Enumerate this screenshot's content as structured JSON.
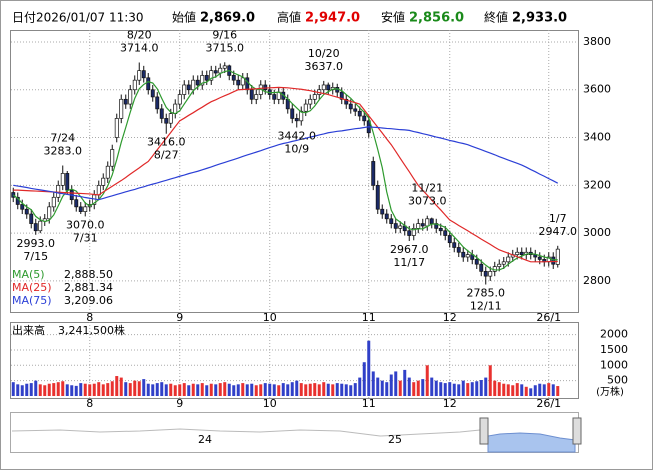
{
  "header": {
    "date_label": "日付",
    "date": "2026/01/07 11:30",
    "fields": [
      {
        "label": "始値",
        "value": "2,869.0"
      },
      {
        "label": "高値",
        "value": "2,947.0"
      },
      {
        "label": "安値",
        "value": "2,856.0"
      },
      {
        "label": "終値",
        "value": "2,933.0"
      }
    ]
  },
  "chart_data": {
    "type": "candlestick",
    "categories": [
      null,
      null,
      null,
      null,
      null,
      null,
      null,
      null,
      null,
      null,
      null,
      null,
      null,
      null,
      null,
      null,
      null,
      "8",
      null,
      null,
      null,
      null,
      null,
      null,
      null,
      null,
      null,
      null,
      null,
      null,
      null,
      null,
      null,
      null,
      null,
      null,
      null,
      "9",
      null,
      null,
      null,
      null,
      null,
      null,
      null,
      null,
      null,
      null,
      null,
      null,
      null,
      null,
      null,
      null,
      null,
      null,
      null,
      "10",
      null,
      null,
      null,
      null,
      null,
      null,
      null,
      null,
      null,
      null,
      null,
      null,
      null,
      null,
      null,
      null,
      null,
      null,
      null,
      null,
      null,
      "11",
      null,
      null,
      null,
      null,
      null,
      null,
      null,
      null,
      null,
      null,
      null,
      null,
      null,
      null,
      null,
      null,
      null,
      "12",
      null,
      null,
      null,
      null,
      null,
      null,
      null,
      null,
      null,
      null,
      null,
      null,
      null,
      null,
      null,
      null,
      null,
      null,
      null,
      null,
      null,
      "26/1",
      null,
      null
    ],
    "open": [
      3170,
      3150,
      3120,
      3100,
      3080,
      3040,
      3010,
      3050,
      3060,
      3110,
      3150,
      3200,
      3250,
      3180,
      3140,
      3110,
      3090,
      3110,
      3120,
      3160,
      3200,
      3230,
      3280,
      3400,
      3480,
      3560,
      3540,
      3600,
      3640,
      3680,
      3650,
      3600,
      3570,
      3520,
      3480,
      3460,
      3500,
      3540,
      3580,
      3620,
      3600,
      3640,
      3620,
      3660,
      3640,
      3680,
      3670,
      3690,
      3700,
      3660,
      3640,
      3620,
      3650,
      3600,
      3560,
      3580,
      3620,
      3600,
      3580,
      3560,
      3590,
      3560,
      3520,
      3480,
      3470,
      3510,
      3540,
      3560,
      3580,
      3600,
      3620,
      3600,
      3610,
      3590,
      3560,
      3540,
      3520,
      3510,
      3490,
      3470,
      3300,
      3200,
      3100,
      3080,
      3060,
      3040,
      3020,
      3030,
      3010,
      2990,
      3020,
      3040,
      3030,
      3060,
      3040,
      3020,
      3010,
      2990,
      2960,
      2940,
      2920,
      2900,
      2910,
      2890,
      2870,
      2840,
      2820,
      2840,
      2860,
      2870,
      2880,
      2900,
      2910,
      2920,
      2910,
      2920,
      2910,
      2900,
      2890,
      2880,
      2900,
      2869
    ],
    "high": [
      3190,
      3170,
      3140,
      3120,
      3100,
      3060,
      3070,
      3080,
      3130,
      3170,
      3220,
      3283,
      3260,
      3200,
      3160,
      3130,
      3130,
      3140,
      3180,
      3220,
      3250,
      3300,
      3370,
      3500,
      3580,
      3580,
      3620,
      3660,
      3714,
      3700,
      3670,
      3620,
      3590,
      3540,
      3500,
      3520,
      3560,
      3600,
      3640,
      3640,
      3660,
      3660,
      3680,
      3680,
      3700,
      3700,
      3710,
      3715,
      3705,
      3680,
      3660,
      3670,
      3670,
      3620,
      3600,
      3640,
      3640,
      3620,
      3600,
      3610,
      3610,
      3580,
      3540,
      3500,
      3530,
      3560,
      3580,
      3600,
      3620,
      3637,
      3630,
      3630,
      3625,
      3610,
      3580,
      3560,
      3540,
      3530,
      3510,
      3490,
      3320,
      3220,
      3120,
      3100,
      3080,
      3060,
      3050,
      3050,
      3030,
      3040,
      3060,
      3060,
      3073,
      3065,
      3060,
      3040,
      3030,
      3010,
      2980,
      2960,
      2940,
      2930,
      2930,
      2910,
      2890,
      2860,
      2860,
      2880,
      2890,
      2900,
      2920,
      2930,
      2940,
      2940,
      2940,
      2940,
      2930,
      2920,
      2910,
      2920,
      2920,
      2947
    ],
    "low": [
      3130,
      3100,
      3080,
      3060,
      3020,
      2993,
      3000,
      3030,
      3040,
      3090,
      3130,
      3180,
      3160,
      3120,
      3090,
      3080,
      3070,
      3090,
      3100,
      3140,
      3180,
      3210,
      3260,
      3380,
      3460,
      3520,
      3520,
      3580,
      3620,
      3630,
      3580,
      3550,
      3500,
      3460,
      3416,
      3440,
      3480,
      3520,
      3560,
      3580,
      3580,
      3600,
      3600,
      3620,
      3620,
      3650,
      3650,
      3670,
      3640,
      3620,
      3600,
      3600,
      3580,
      3540,
      3540,
      3560,
      3580,
      3560,
      3540,
      3540,
      3540,
      3500,
      3460,
      3442,
      3450,
      3490,
      3520,
      3540,
      3560,
      3580,
      3580,
      3580,
      3570,
      3540,
      3520,
      3500,
      3490,
      3470,
      3450,
      3400,
      3180,
      3080,
      3060,
      3040,
      3020,
      3000,
      3000,
      2990,
      2967,
      2970,
      3000,
      3010,
      3010,
      3020,
      3000,
      2990,
      2970,
      2940,
      2920,
      2900,
      2880,
      2880,
      2870,
      2850,
      2820,
      2785,
      2800,
      2820,
      2840,
      2850,
      2860,
      2880,
      2890,
      2890,
      2890,
      2890,
      2880,
      2870,
      2860,
      2860,
      2850,
      2856
    ],
    "close": [
      3150,
      3120,
      3100,
      3080,
      3040,
      3010,
      3050,
      3060,
      3110,
      3150,
      3200,
      3250,
      3180,
      3140,
      3110,
      3090,
      3110,
      3120,
      3160,
      3200,
      3230,
      3280,
      3350,
      3480,
      3560,
      3540,
      3600,
      3640,
      3680,
      3650,
      3600,
      3570,
      3520,
      3480,
      3460,
      3500,
      3540,
      3580,
      3620,
      3600,
      3640,
      3620,
      3660,
      3640,
      3680,
      3670,
      3690,
      3700,
      3660,
      3640,
      3620,
      3650,
      3600,
      3560,
      3580,
      3620,
      3600,
      3580,
      3560,
      3590,
      3560,
      3520,
      3480,
      3470,
      3510,
      3540,
      3560,
      3580,
      3600,
      3620,
      3600,
      3610,
      3590,
      3560,
      3540,
      3520,
      3510,
      3490,
      3470,
      3420,
      3200,
      3100,
      3080,
      3060,
      3040,
      3020,
      3030,
      3010,
      2990,
      3020,
      3040,
      3030,
      3060,
      3040,
      3020,
      3010,
      2990,
      2960,
      2940,
      2920,
      2900,
      2910,
      2890,
      2870,
      2840,
      2820,
      2840,
      2860,
      2870,
      2880,
      2900,
      2910,
      2920,
      2910,
      2920,
      2910,
      2900,
      2890,
      2880,
      2900,
      2870,
      2933
    ],
    "up_color": "#ffffff",
    "down_color": "#1b2a66",
    "series": [
      {
        "name": "MA(5)",
        "color": "#2e9a2e",
        "legend_label": "2,888.50",
        "values": [
          3160,
          3145,
          3125,
          3110,
          3098,
          3070,
          3056,
          3048,
          3054,
          3076,
          3114,
          3154,
          3178,
          3184,
          3176,
          3152,
          3126,
          3114,
          3126,
          3140,
          3164,
          3198,
          3244,
          3308,
          3380,
          3442,
          3506,
          3564,
          3604,
          3622,
          3634,
          3628,
          3604,
          3564,
          3526,
          3506,
          3500,
          3512,
          3540,
          3568,
          3596,
          3612,
          3628,
          3632,
          3648,
          3654,
          3668,
          3676,
          3680,
          3670,
          3662,
          3654,
          3634,
          3614,
          3602,
          3602,
          3592,
          3588,
          3588,
          3590,
          3578,
          3562,
          3542,
          3524,
          3506,
          3504,
          3512,
          3532,
          3558,
          3580,
          3592,
          3602,
          3604,
          3596,
          3580,
          3564,
          3544,
          3524,
          3506,
          3482,
          3420,
          3350,
          3274,
          3172,
          3096,
          3060,
          3046,
          3032,
          3018,
          3014,
          3018,
          3018,
          3028,
          3038,
          3038,
          3032,
          3024,
          3004,
          2984,
          2964,
          2942,
          2926,
          2912,
          2898,
          2882,
          2866,
          2852,
          2846,
          2846,
          2854,
          2870,
          2884,
          2896,
          2904,
          2912,
          2914,
          2912,
          2906,
          2900,
          2896,
          2888,
          2888.5
        ]
      },
      {
        "name": "MA(25)",
        "color": "#e02828",
        "legend_label": "2,881.34",
        "values": [
          3180,
          3180,
          3179,
          3178,
          3177,
          3176,
          3175,
          3174,
          3173,
          3172,
          3171,
          3170,
          3169,
          3168,
          3167,
          3166,
          3165,
          3164,
          3162,
          3160,
          3172,
          3184,
          3196,
          3208,
          3220,
          3233,
          3247,
          3260,
          3273,
          3287,
          3300,
          3324,
          3349,
          3373,
          3397,
          3421,
          3446,
          3470,
          3481,
          3493,
          3504,
          3516,
          3527,
          3539,
          3550,
          3558,
          3567,
          3575,
          3583,
          3592,
          3600,
          3601,
          3602,
          3603,
          3604,
          3606,
          3607,
          3608,
          3609,
          3610,
          3609,
          3608,
          3606,
          3604,
          3602,
          3599,
          3596,
          3592,
          3588,
          3584,
          3580,
          3574,
          3569,
          3563,
          3557,
          3551,
          3546,
          3540,
          3516,
          3491,
          3467,
          3443,
          3419,
          3394,
          3370,
          3342,
          3313,
          3285,
          3257,
          3228,
          3200,
          3179,
          3159,
          3138,
          3117,
          3097,
          3076,
          3055,
          3044,
          3032,
          3021,
          3010,
          2998,
          2987,
          2975,
          2964,
          2953,
          2941,
          2930,
          2923,
          2916,
          2909,
          2901,
          2894,
          2887,
          2880,
          2880,
          2880,
          2880,
          2881,
          2881,
          2881.34
        ]
      },
      {
        "name": "MA(75)",
        "color": "#2b3fd6",
        "legend_label": "3,209.06",
        "values": [
          3200,
          3197,
          3194,
          3191,
          3187,
          3184,
          3181,
          3178,
          3175,
          3172,
          3168,
          3165,
          3162,
          3159,
          3156,
          3153,
          3149,
          3146,
          3143,
          3140,
          3145,
          3151,
          3156,
          3162,
          3167,
          3173,
          3178,
          3183,
          3189,
          3194,
          3200,
          3205,
          3210,
          3216,
          3221,
          3227,
          3232,
          3238,
          3243,
          3249,
          3254,
          3259,
          3265,
          3271,
          3277,
          3284,
          3290,
          3296,
          3302,
          3308,
          3314,
          3321,
          3327,
          3333,
          3339,
          3345,
          3352,
          3358,
          3364,
          3370,
          3375,
          3379,
          3384,
          3388,
          3393,
          3397,
          3402,
          3406,
          3411,
          3415,
          3420,
          3423,
          3426,
          3428,
          3431,
          3434,
          3437,
          3439,
          3442,
          3445,
          3443,
          3442,
          3440,
          3438,
          3437,
          3435,
          3433,
          3432,
          3430,
          3425,
          3421,
          3416,
          3412,
          3407,
          3402,
          3398,
          3393,
          3388,
          3384,
          3379,
          3375,
          3370,
          3363,
          3356,
          3349,
          3342,
          3335,
          3328,
          3320,
          3313,
          3306,
          3299,
          3292,
          3285,
          3276,
          3266,
          3257,
          3247,
          3238,
          3228,
          3219,
          3209.06
        ]
      }
    ],
    "ylim": [
      2670,
      3850
    ],
    "yticks": [
      2800,
      3000,
      3200,
      3400,
      3600,
      3800
    ],
    "grid": true,
    "annotations": [
      {
        "date": "7/15",
        "value": 2993,
        "label": "2993.0",
        "kind": "low"
      },
      {
        "date": "7/24",
        "value": 3283,
        "label": "3283.0",
        "kind": "high"
      },
      {
        "date": "7/31",
        "value": 3070,
        "label": "3070.0",
        "kind": "low"
      },
      {
        "date": "8/20",
        "value": 3714,
        "label": "3714.0",
        "kind": "high"
      },
      {
        "date": "8/27",
        "value": 3416,
        "label": "3416.0",
        "kind": "low"
      },
      {
        "date": "9/16",
        "value": 3715,
        "label": "3715.0",
        "kind": "high"
      },
      {
        "date": "10/9",
        "value": 3442,
        "label": "3442.0",
        "kind": "low"
      },
      {
        "date": "10/20",
        "value": 3637,
        "label": "3637.0",
        "kind": "high"
      },
      {
        "date": "11/17",
        "value": 2967,
        "label": "2967.0",
        "kind": "low"
      },
      {
        "date": "11/21",
        "value": 3073,
        "label": "3073.0",
        "kind": "high"
      },
      {
        "date": "12/11",
        "value": 2785,
        "label": "2785.0",
        "kind": "low"
      },
      {
        "date": "1/7",
        "value": 2947,
        "label": "2947.0",
        "kind": "high"
      }
    ],
    "volume": {
      "title": "出来高",
      "label": "3,241,500株",
      "unit": "(万株)",
      "up_color": "#e8312f",
      "down_color": "#3040c8",
      "ylim": [
        0,
        2410
      ],
      "yticks": [
        500,
        1000,
        1500,
        2000
      ],
      "values": [
        450,
        380,
        350,
        400,
        420,
        500,
        380,
        350,
        400,
        420,
        450,
        480,
        380,
        350,
        330,
        420,
        400,
        380,
        400,
        450,
        380,
        420,
        480,
        650,
        600,
        450,
        420,
        500,
        480,
        550,
        400,
        380,
        420,
        450,
        380,
        400,
        350,
        380,
        420,
        350,
        400,
        380,
        420,
        350,
        400,
        380,
        420,
        450,
        400,
        350,
        380,
        420,
        380,
        400,
        350,
        380,
        420,
        400,
        380,
        350,
        420,
        380,
        450,
        500,
        420,
        380,
        400,
        420,
        380,
        450,
        400,
        380,
        420,
        400,
        380,
        350,
        420,
        600,
        1100,
        1800,
        800,
        600,
        500,
        450,
        700,
        800,
        500,
        850,
        600,
        450,
        500,
        550,
        1000,
        600,
        500,
        450,
        420,
        450,
        400,
        380,
        500,
        420,
        450,
        480,
        520,
        600,
        1000,
        500,
        450,
        400,
        380,
        350,
        420,
        380,
        300,
        250,
        350,
        400,
        380,
        420,
        380,
        324.15
      ]
    },
    "navigator": {
      "labels": [
        "24",
        "25"
      ]
    }
  }
}
